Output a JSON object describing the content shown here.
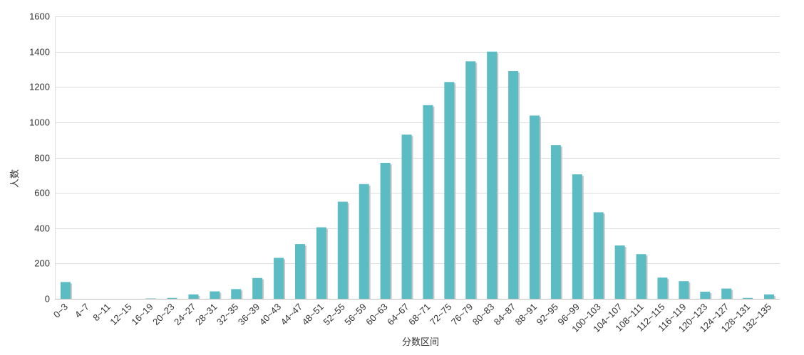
{
  "chart_data": {
    "type": "bar",
    "xlabel": "分数区间",
    "ylabel": "人数",
    "ylim": [
      0,
      1600
    ],
    "yticks": [
      0,
      200,
      400,
      600,
      800,
      1000,
      1200,
      1400,
      1600
    ],
    "grid": true,
    "legend": "none",
    "bar_color": "#5bbcc4",
    "shadow_color": "#c8c8c8",
    "categories": [
      "0~3",
      "4~7",
      "8~11",
      "12~15",
      "16~19",
      "20~23",
      "24~27",
      "28~31",
      "32~35",
      "36~39",
      "40~43",
      "44~47",
      "48~51",
      "52~55",
      "56~59",
      "60~63",
      "64~67",
      "68~71",
      "72~75",
      "76~79",
      "80~83",
      "84~87",
      "88~91",
      "92~95",
      "96~99",
      "100~103",
      "104~107",
      "108~111",
      "112~115",
      "116~119",
      "120~123",
      "124~127",
      "128~131",
      "132~135"
    ],
    "values": [
      95,
      0,
      0,
      0,
      2,
      5,
      25,
      42,
      55,
      118,
      232,
      310,
      405,
      550,
      650,
      770,
      930,
      1097,
      1228,
      1345,
      1400,
      1290,
      1038,
      870,
      705,
      490,
      302,
      253,
      120,
      100,
      40,
      58,
      5,
      25
    ]
  }
}
